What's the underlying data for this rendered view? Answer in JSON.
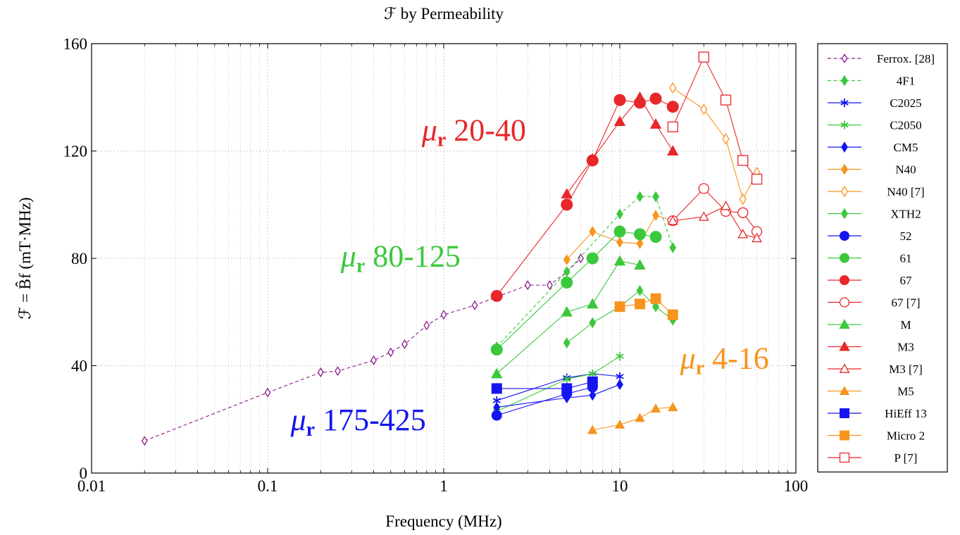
{
  "chart_data": {
    "type": "line",
    "title": "ℱ by Permeability",
    "xlabel": "Frequency (MHz)",
    "ylabel": "ℱ = B̂f (mT·MHz)",
    "xscale": "log",
    "xlim": [
      0.01,
      100
    ],
    "ylim": [
      0,
      160
    ],
    "xticks": [
      0.01,
      0.1,
      1,
      10,
      100
    ],
    "xtick_labels": [
      "0.01",
      "0.1",
      "1",
      "10",
      "100"
    ],
    "yticks": [
      0,
      40,
      80,
      120,
      160
    ],
    "ytick_labels": [
      "0",
      "40",
      "80",
      "120",
      "160"
    ],
    "grid": true,
    "legend_position": "right-outside",
    "annotations": [
      {
        "symbol": "μ",
        "sub": "r",
        "text": " 20-40",
        "color": "#e8272b",
        "x": 0.75,
        "y": 124
      },
      {
        "symbol": "μ",
        "sub": "r",
        "text": " 80-125",
        "color": "#3cc83c",
        "x": 0.26,
        "y": 77
      },
      {
        "symbol": "μ",
        "sub": "r",
        "text": " 4-16",
        "color": "#f7941d",
        "x": 22,
        "y": 39
      },
      {
        "symbol": "μ",
        "sub": "r",
        "text": " 175-425",
        "color": "#1515f0",
        "x": 0.135,
        "y": 16
      }
    ],
    "series": [
      {
        "name": "Ferrox. [28]",
        "color": "#8e1a8e",
        "marker": "diamond-open",
        "dash": true,
        "msize": 5,
        "points": [
          [
            0.02,
            12
          ],
          [
            0.1,
            30
          ],
          [
            0.2,
            37.5
          ],
          [
            0.25,
            38
          ],
          [
            0.4,
            42
          ],
          [
            0.5,
            45
          ],
          [
            0.6,
            48
          ],
          [
            0.8,
            55
          ],
          [
            1,
            59
          ],
          [
            1.5,
            62.5
          ],
          [
            3,
            70
          ],
          [
            4,
            70
          ],
          [
            5,
            75
          ],
          [
            6,
            80
          ]
        ]
      },
      {
        "name": "4F1",
        "color": "#3cc83c",
        "marker": "diamond",
        "dash": true,
        "msize": 6,
        "points": [
          [
            2,
            47
          ],
          [
            5,
            75
          ],
          [
            10,
            96.5
          ],
          [
            13,
            103
          ],
          [
            16,
            103
          ],
          [
            20,
            84
          ]
        ]
      },
      {
        "name": "C2025",
        "color": "#1515f0",
        "marker": "asterisk",
        "dash": false,
        "msize": 6,
        "points": [
          [
            2,
            27
          ],
          [
            5,
            35.5
          ],
          [
            7,
            37
          ],
          [
            10,
            36
          ]
        ]
      },
      {
        "name": "C2050",
        "color": "#3cc83c",
        "marker": "asterisk",
        "dash": false,
        "msize": 6,
        "points": [
          [
            2,
            23
          ],
          [
            5,
            35
          ],
          [
            7,
            37
          ],
          [
            10,
            43.5
          ]
        ]
      },
      {
        "name": "CM5",
        "color": "#1515f0",
        "marker": "diamond",
        "dash": false,
        "msize": 6,
        "points": [
          [
            2,
            24.5
          ],
          [
            5,
            28
          ],
          [
            7,
            29
          ],
          [
            10,
            33
          ]
        ]
      },
      {
        "name": "N40",
        "color": "#f7941d",
        "marker": "diamond",
        "dash": false,
        "msize": 6,
        "points": [
          [
            5,
            79.5
          ],
          [
            7,
            90
          ],
          [
            10,
            86
          ],
          [
            13,
            85.5
          ],
          [
            16,
            96
          ],
          [
            20,
            94
          ]
        ]
      },
      {
        "name": "N40 [7]",
        "color": "#f7941d",
        "marker": "diamond-open",
        "dash": false,
        "msize": 6,
        "points": [
          [
            20,
            143.5
          ],
          [
            30,
            135.5
          ],
          [
            40,
            124.5
          ],
          [
            50,
            102
          ],
          [
            60,
            112
          ]
        ]
      },
      {
        "name": "XTH2",
        "color": "#3cc83c",
        "marker": "diamond",
        "dash": false,
        "msize": 6,
        "points": [
          [
            5,
            48.5
          ],
          [
            7,
            56
          ],
          [
            10,
            62
          ],
          [
            13,
            68
          ],
          [
            16,
            62
          ],
          [
            20,
            57
          ]
        ]
      },
      {
        "name": "52",
        "color": "#1515f0",
        "marker": "circle",
        "dash": false,
        "msize": 7,
        "points": [
          [
            2,
            21.5
          ],
          [
            5,
            29.5
          ],
          [
            7,
            32
          ]
        ]
      },
      {
        "name": "61",
        "color": "#3cc83c",
        "marker": "circle",
        "dash": false,
        "msize": 8,
        "points": [
          [
            2,
            46
          ],
          [
            5,
            71
          ],
          [
            7,
            80
          ],
          [
            10,
            90
          ],
          [
            13,
            89
          ],
          [
            16,
            88
          ]
        ]
      },
      {
        "name": "67",
        "color": "#e8272b",
        "marker": "circle",
        "dash": false,
        "msize": 8,
        "points": [
          [
            2,
            66
          ],
          [
            5,
            100
          ],
          [
            7,
            116.5
          ],
          [
            10,
            139
          ],
          [
            13,
            138
          ],
          [
            16,
            139.5
          ],
          [
            20,
            136.5
          ]
        ]
      },
      {
        "name": "67 [7]",
        "color": "#e8272b",
        "marker": "circle-open",
        "dash": false,
        "msize": 7,
        "points": [
          [
            20,
            94
          ],
          [
            30,
            106
          ],
          [
            40,
            97.5
          ],
          [
            50,
            97
          ],
          [
            60,
            90
          ]
        ]
      },
      {
        "name": "M",
        "color": "#3cc83c",
        "marker": "triangle",
        "dash": false,
        "msize": 7,
        "points": [
          [
            2,
            37
          ],
          [
            5,
            60
          ],
          [
            7,
            63
          ],
          [
            10,
            79
          ],
          [
            13,
            77.5
          ]
        ]
      },
      {
        "name": "M3",
        "color": "#e8272b",
        "marker": "triangle",
        "dash": false,
        "msize": 7,
        "points": [
          [
            5,
            104
          ],
          [
            7,
            117
          ],
          [
            10,
            131
          ],
          [
            13,
            140
          ],
          [
            16,
            130
          ],
          [
            20,
            120
          ]
        ]
      },
      {
        "name": "M3 [7]",
        "color": "#e8272b",
        "marker": "triangle-open",
        "dash": false,
        "msize": 6,
        "points": [
          [
            20,
            94
          ],
          [
            30,
            95.5
          ],
          [
            40,
            99.5
          ],
          [
            50,
            89
          ],
          [
            60,
            87.5
          ]
        ]
      },
      {
        "name": "M5",
        "color": "#f7941d",
        "marker": "triangle",
        "dash": false,
        "msize": 6,
        "points": [
          [
            7,
            16
          ],
          [
            10,
            18
          ],
          [
            13,
            20.5
          ],
          [
            16,
            24
          ],
          [
            20,
            24.5
          ]
        ]
      },
      {
        "name": "HiEff 13",
        "color": "#1515f0",
        "marker": "square",
        "dash": false,
        "msize": 7,
        "points": [
          [
            2,
            31.5
          ],
          [
            5,
            31.5
          ],
          [
            7,
            34
          ]
        ]
      },
      {
        "name": "Micro 2",
        "color": "#f7941d",
        "marker": "square",
        "dash": false,
        "msize": 7,
        "points": [
          [
            10,
            62
          ],
          [
            13,
            63
          ],
          [
            16,
            65
          ],
          [
            20,
            59
          ]
        ]
      },
      {
        "name": "P [7]",
        "color": "#e8272b",
        "marker": "square-open",
        "dash": false,
        "msize": 7,
        "points": [
          [
            20,
            129
          ],
          [
            30,
            155
          ],
          [
            40,
            139
          ],
          [
            50,
            116.5
          ],
          [
            60,
            109.5
          ]
        ]
      }
    ]
  }
}
